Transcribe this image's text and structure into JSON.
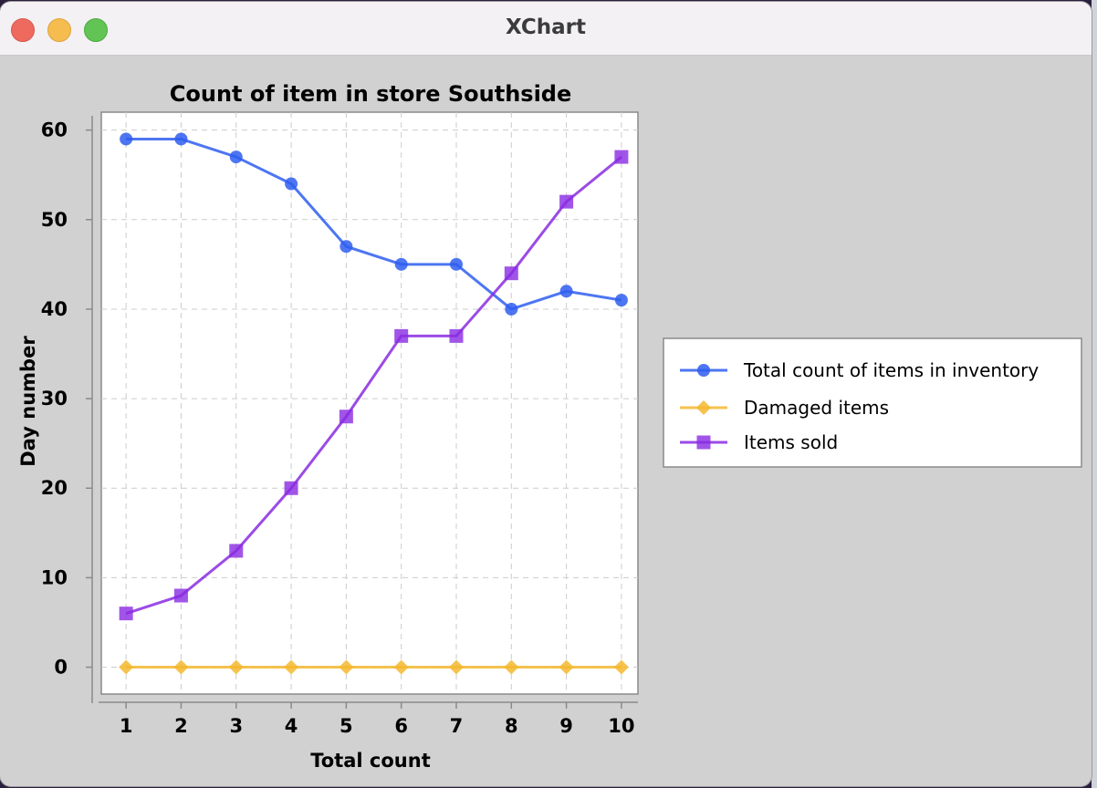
{
  "window": {
    "title": "XChart"
  },
  "colors": {
    "inventory": "#2f5ef0",
    "damaged": "#f5b830",
    "sold": "#8a2be2"
  },
  "chart_data": {
    "type": "line",
    "title": "Count of item in store Southside",
    "xlabel": "Total count",
    "ylabel": "Day number",
    "x": [
      1,
      2,
      3,
      4,
      5,
      6,
      7,
      8,
      9,
      10
    ],
    "xlim": [
      0.55,
      10.3
    ],
    "ylim": [
      -3,
      62
    ],
    "yticks": [
      0,
      10,
      20,
      30,
      40,
      50,
      60
    ],
    "grid": true,
    "legend_position": "outside-right",
    "series": [
      {
        "name": "Total count of items in inventory",
        "marker": "circle",
        "values": [
          59,
          59,
          57,
          54,
          47,
          45,
          45,
          40,
          42,
          41
        ]
      },
      {
        "name": "Damaged items",
        "marker": "diamond",
        "values": [
          0,
          0,
          0,
          0,
          0,
          0,
          0,
          0,
          0,
          0
        ]
      },
      {
        "name": "Items sold",
        "marker": "square",
        "values": [
          6,
          8,
          13,
          20,
          28,
          37,
          37,
          44,
          52,
          57
        ]
      }
    ]
  }
}
